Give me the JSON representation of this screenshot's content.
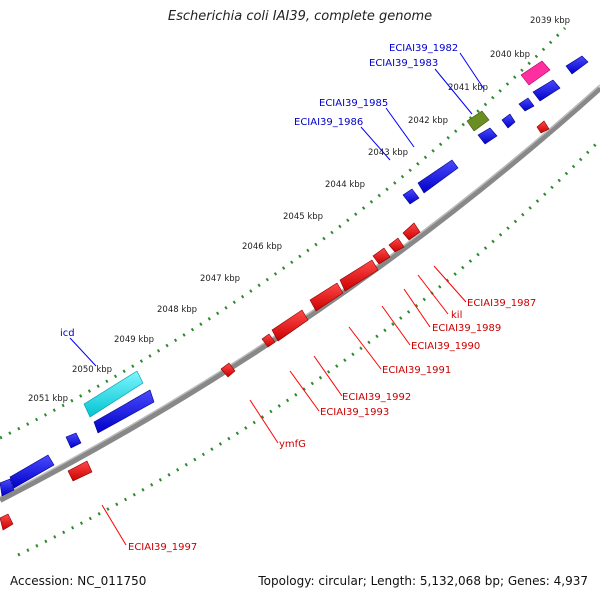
{
  "title": "Escherichia coli IAI39, complete genome",
  "accession": "Accession: NC_011750",
  "summary": "Topology: circular; Length: 5,132,068 bp; Genes: 4,937",
  "colors": {
    "backbone": "#888888",
    "tick": "#2e8b2e",
    "plus_strand": "#0000ff",
    "minus_strand": "#ff0000",
    "rrna": "#00d8e0",
    "trna": "#ff2fa0",
    "misc": "#6b8e23"
  },
  "ticks": [
    "2039 kbp",
    "2040 kbp",
    "2041 kbp",
    "2042 kbp",
    "2043 kbp",
    "2044 kbp",
    "2045 kbp",
    "2046 kbp",
    "2047 kbp",
    "2048 kbp",
    "2049 kbp",
    "2050 kbp",
    "2051 kbp"
  ],
  "genes_plus": [
    {
      "label": "ECIAI39_1982"
    },
    {
      "label": "ECIAI39_1983"
    },
    {
      "label": "ECIAI39_1985"
    },
    {
      "label": "ECIAI39_1986"
    },
    {
      "label": "icd"
    }
  ],
  "genes_minus": [
    {
      "label": "ECIAI39_1987"
    },
    {
      "label": "kil"
    },
    {
      "label": "ECIAI39_1989"
    },
    {
      "label": "ECIAI39_1990"
    },
    {
      "label": "ECIAI39_1991"
    },
    {
      "label": "ECIAI39_1992"
    },
    {
      "label": "ECIAI39_1993"
    },
    {
      "label": "ymfG"
    },
    {
      "label": "ECIAI39_1997"
    }
  ]
}
